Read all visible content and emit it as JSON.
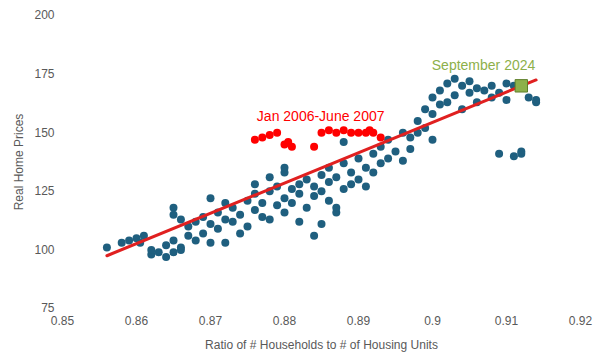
{
  "chart_data": {
    "type": "scatter",
    "x_label": "Ratio of # Households to # of Housing Units",
    "y_label": "Real Home Prices",
    "xlim": [
      0.85,
      0.92
    ],
    "xticks": [
      0.85,
      0.86,
      0.87,
      0.88,
      0.89,
      0.9,
      0.91,
      0.92
    ],
    "ylim": [
      75,
      200
    ],
    "yticks": [
      75,
      100,
      125,
      150,
      175,
      200
    ],
    "grid": false,
    "series": [
      {
        "color": "#1f5f7f",
        "marker": "circle",
        "x": [
          0.856,
          0.858,
          0.859,
          0.86,
          0.8605,
          0.861,
          0.862,
          0.862,
          0.863,
          0.864,
          0.864,
          0.865,
          0.865,
          0.866,
          0.866,
          0.865,
          0.865,
          0.866,
          0.867,
          0.867,
          0.868,
          0.868,
          0.869,
          0.869,
          0.87,
          0.87,
          0.87,
          0.871,
          0.871,
          0.872,
          0.872,
          0.872,
          0.873,
          0.873,
          0.874,
          0.874,
          0.875,
          0.875,
          0.876,
          0.876,
          0.876,
          0.877,
          0.877,
          0.878,
          0.878,
          0.878,
          0.879,
          0.879,
          0.88,
          0.88,
          0.88,
          0.881,
          0.881,
          0.882,
          0.882,
          0.882,
          0.883,
          0.883,
          0.884,
          0.884,
          0.885,
          0.885,
          0.886,
          0.886,
          0.886,
          0.887,
          0.887,
          0.888,
          0.888,
          0.889,
          0.889,
          0.89,
          0.89,
          0.891,
          0.891,
          0.892,
          0.892,
          0.893,
          0.893,
          0.894,
          0.894,
          0.895,
          0.896,
          0.896,
          0.897,
          0.897,
          0.898,
          0.898,
          0.899,
          0.899,
          0.9,
          0.9,
          0.9,
          0.901,
          0.901,
          0.902,
          0.902,
          0.903,
          0.903,
          0.904,
          0.904,
          0.905,
          0.905,
          0.906,
          0.906,
          0.907,
          0.908,
          0.908,
          0.909,
          0.91,
          0.91,
          0.911,
          0.911,
          0.912,
          0.912,
          0.913,
          0.914,
          0.914,
          0.909,
          0.888,
          0.887,
          0.885,
          0.884,
          0.88
        ],
        "values": [
          101,
          103,
          104,
          105,
          103,
          106,
          98,
          100,
          99,
          102,
          97,
          99,
          104,
          101,
          100,
          118,
          115,
          113,
          106,
          110,
          104,
          112,
          107,
          114,
          111,
          103,
          122,
          109,
          116,
          113,
          120,
          103,
          112,
          118,
          107,
          115,
          110,
          121,
          117,
          124,
          128,
          114,
          120,
          125,
          113,
          131,
          119,
          127,
          122,
          116,
          133,
          126,
          120,
          128,
          124,
          112,
          130,
          118,
          127,
          123,
          132,
          125,
          129,
          121,
          135,
          131,
          116,
          126,
          137,
          133,
          128,
          139,
          130,
          135,
          127,
          141,
          133,
          137,
          144,
          139,
          147,
          142,
          150,
          138,
          148,
          143,
          155,
          150,
          152,
          160,
          158,
          165,
          147,
          162,
          168,
          171,
          163,
          173,
          166,
          170,
          160,
          172,
          167,
          169,
          163,
          168,
          170,
          165,
          167,
          171,
          164,
          140,
          170,
          141,
          142,
          165,
          163,
          164,
          141,
          146,
          118,
          111,
          106,
          135
        ]
      },
      {
        "type": "line",
        "color": "#e02020",
        "x": [
          0.856,
          0.914
        ],
        "values": [
          97.5,
          172.5
        ]
      },
      {
        "name": "Jan 2006-June 2007",
        "color": "#ff0000",
        "marker": "circle",
        "x": [
          0.876,
          0.877,
          0.878,
          0.879,
          0.88,
          0.8805,
          0.881,
          0.884,
          0.885,
          0.886,
          0.887,
          0.888,
          0.889,
          0.89,
          0.891,
          0.8915,
          0.892,
          0.893
        ],
        "values": [
          147,
          148,
          149,
          150,
          145,
          146,
          144,
          144,
          150,
          151,
          150,
          151,
          150,
          150,
          150,
          151,
          150,
          148
        ]
      },
      {
        "name": "September 2024",
        "color": "#8db04a",
        "marker": "square",
        "x": [
          0.912
        ],
        "values": [
          170
        ]
      }
    ]
  }
}
